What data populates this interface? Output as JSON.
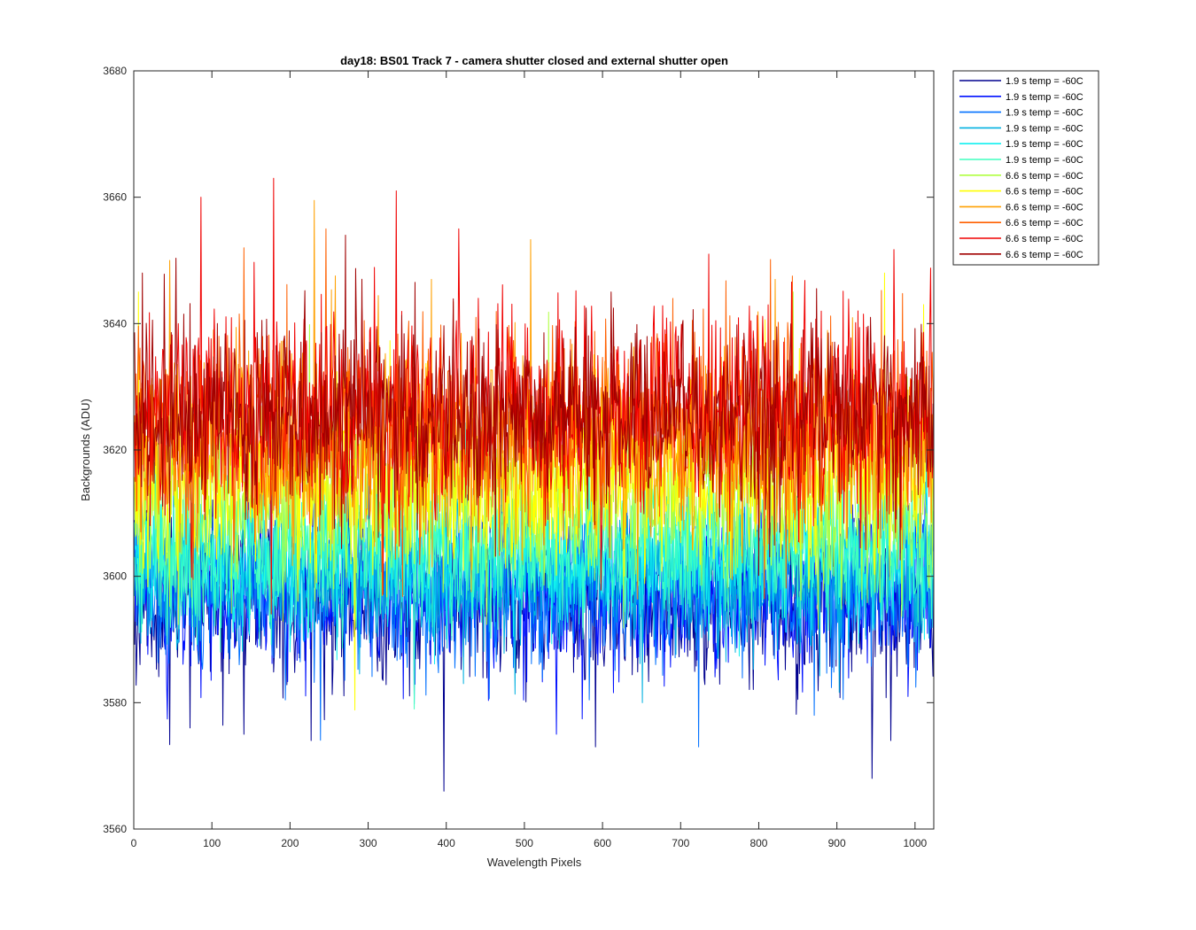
{
  "chart_data": {
    "type": "line",
    "title": "day18: BS01  Track 7 - camera shutter closed and external shutter open",
    "xlabel": "Wavelength Pixels",
    "ylabel": "Backgrounds (ADU)",
    "xlim": [
      0,
      1024
    ],
    "ylim": [
      3560,
      3680
    ],
    "xticks": [
      0,
      100,
      200,
      300,
      400,
      500,
      600,
      700,
      800,
      900,
      1000
    ],
    "yticks": [
      3560,
      3580,
      3600,
      3620,
      3640,
      3660,
      3680
    ],
    "grid": false,
    "legend_position": "outside-top-right",
    "n_points": 1024,
    "series": [
      {
        "name": "1.9 s temp = -60C",
        "color": "#00008f",
        "mean": 3596,
        "noise_sd": 6.0,
        "seed": 11,
        "extremes": [
          [
            396,
            3566
          ],
          [
            944,
            3568
          ],
          [
            71,
            3576
          ],
          [
            140,
            3575
          ],
          [
            226,
            3574
          ],
          [
            590,
            3573
          ],
          [
            968,
            3574
          ]
        ]
      },
      {
        "name": "1.9 s temp = -60C",
        "color": "#0010ff",
        "mean": 3597,
        "noise_sd": 6.0,
        "seed": 23,
        "extremes": [
          [
            155,
            3613
          ],
          [
            300,
            3615
          ],
          [
            540,
            3575
          ]
        ]
      },
      {
        "name": "1.9 s temp = -60C",
        "color": "#0070ff",
        "mean": 3598,
        "noise_sd": 6.0,
        "seed": 37,
        "extremes": [
          [
            722,
            3573
          ],
          [
            870,
            3578
          ]
        ]
      },
      {
        "name": "1.9 s temp = -60C",
        "color": "#00b0e0",
        "mean": 3600,
        "noise_sd": 5.5,
        "seed": 41,
        "extremes": [
          [
            650,
            3580
          ]
        ]
      },
      {
        "name": "1.9 s temp = -60C",
        "color": "#10f0f0",
        "mean": 3603,
        "noise_sd": 5.5,
        "seed": 53,
        "extremes": [
          [
            440,
            3612
          ]
        ]
      },
      {
        "name": "1.9 s temp = -60C",
        "color": "#40ffbf",
        "mean": 3604,
        "noise_sd": 5.5,
        "seed": 67,
        "extremes": [
          [
            358,
            3579
          ],
          [
            110,
            3588
          ]
        ]
      },
      {
        "name": "6.6 s temp = -60C",
        "color": "#b0ff40",
        "mean": 3612,
        "noise_sd": 6.5,
        "seed": 71,
        "extremes": [
          [
            843,
            3645
          ]
        ]
      },
      {
        "name": "6.6 s temp = -60C",
        "color": "#ffff00",
        "mean": 3616,
        "noise_sd": 7.0,
        "seed": 83,
        "extremes": [
          [
            960,
            3648
          ],
          [
            1010,
            3643
          ],
          [
            5,
            3645
          ]
        ]
      },
      {
        "name": "6.6 s temp = -60C",
        "color": "#ffa000",
        "mean": 3621,
        "noise_sd": 7.5,
        "seed": 97,
        "extremes": [
          [
            45,
            3650
          ],
          [
            820,
            3647
          ],
          [
            380,
            3647
          ]
        ]
      },
      {
        "name": "6.6 s temp = -60C",
        "color": "#ff6000",
        "mean": 3624,
        "noise_sd": 8.0,
        "seed": 101,
        "extremes": [
          [
            245,
            3655
          ],
          [
            140,
            3652
          ]
        ]
      },
      {
        "name": "6.6 s temp = -60C",
        "color": "#f00000",
        "mean": 3626,
        "noise_sd": 8.0,
        "seed": 113,
        "extremes": [
          [
            178,
            3663
          ],
          [
            335,
            3661
          ],
          [
            85,
            3660
          ],
          [
            415,
            3655
          ],
          [
            735,
            3651
          ]
        ]
      },
      {
        "name": "6.6 s temp = -60C",
        "color": "#a00000",
        "mean": 3626,
        "noise_sd": 7.5,
        "seed": 127,
        "extremes": [
          [
            270,
            3654
          ],
          [
            10,
            3648
          ],
          [
            610,
            3645
          ]
        ]
      }
    ]
  }
}
